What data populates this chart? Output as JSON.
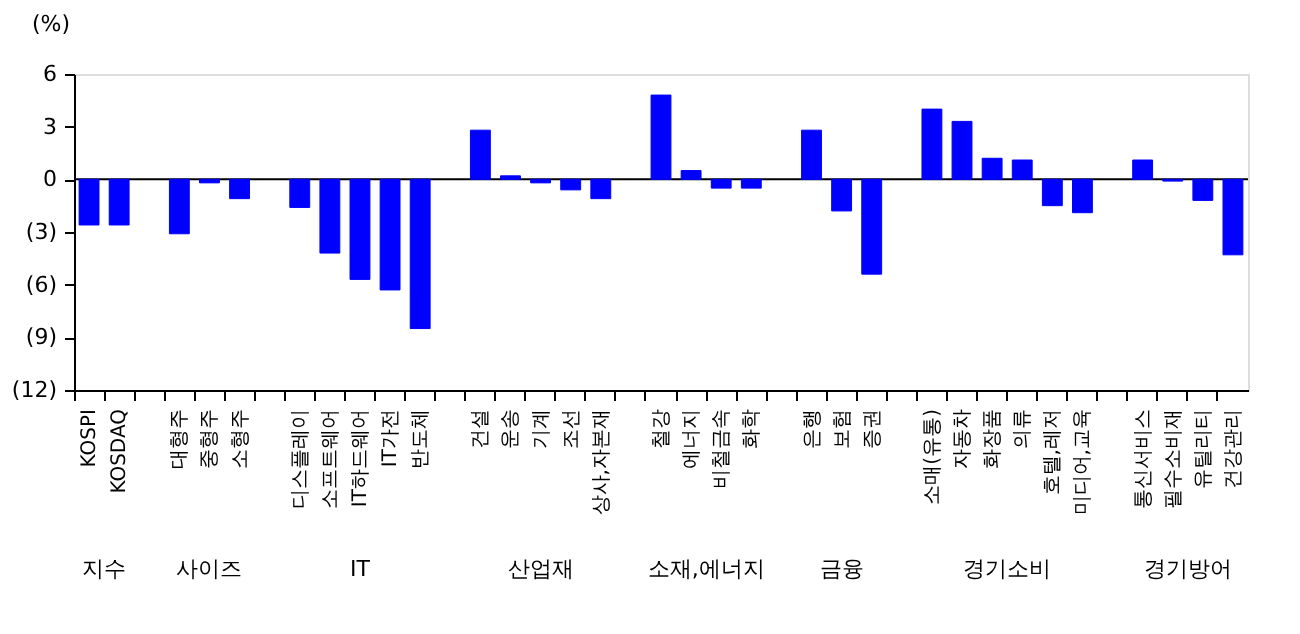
{
  "chart_data": {
    "type": "bar",
    "ylabel": "(%)",
    "categories": [
      "KOSPI",
      "KOSDAQ",
      null,
      "대형주",
      "중형주",
      "소형주",
      null,
      "디스플레이",
      "소프트웨어",
      "IT하드웨어",
      "IT가전",
      "반도체",
      null,
      "건설",
      "운송",
      "기계",
      "조선",
      "상사,자본재",
      null,
      "철강",
      "에너지",
      "비철금속",
      "화학",
      null,
      "은행",
      "보험",
      "증권",
      null,
      "소매(유통)",
      "자동차",
      "화장품",
      "의류",
      "호텔,레저",
      "미디어,교육",
      null,
      "통신서비스",
      "필수소비재",
      "유틸리티",
      "건강관리"
    ],
    "series": [
      {
        "color": "#0000ff",
        "values": [
          -2.6,
          -2.6,
          null,
          -3.1,
          -0.2,
          -1.1,
          null,
          -1.6,
          -4.2,
          -5.7,
          -6.3,
          -8.5,
          null,
          2.8,
          0.2,
          -0.2,
          -0.6,
          -1.1,
          null,
          4.8,
          0.5,
          -0.5,
          -0.5,
          null,
          2.8,
          -1.8,
          -5.4,
          null,
          4.0,
          3.3,
          1.2,
          1.1,
          -1.5,
          -1.9,
          null,
          1.1,
          -0.1,
          -1.2,
          -4.3
        ]
      }
    ],
    "ylim": [
      -12,
      6
    ],
    "yticks": [
      6,
      3,
      0,
      {
        "value": -3,
        "label": "(3)"
      },
      {
        "value": -6,
        "label": "(6)"
      },
      {
        "value": -9,
        "label": "(9)"
      },
      {
        "value": -12,
        "label": "(12)"
      }
    ],
    "ref_lines": [
      {
        "axis": "y",
        "value": 0,
        "color": "#000000"
      }
    ],
    "annotations": [
      "지수",
      "사이즈",
      "IT",
      "산업재",
      "소재,에너지",
      "금융",
      "경기소비",
      "경기방어"
    ],
    "grid": false
  }
}
